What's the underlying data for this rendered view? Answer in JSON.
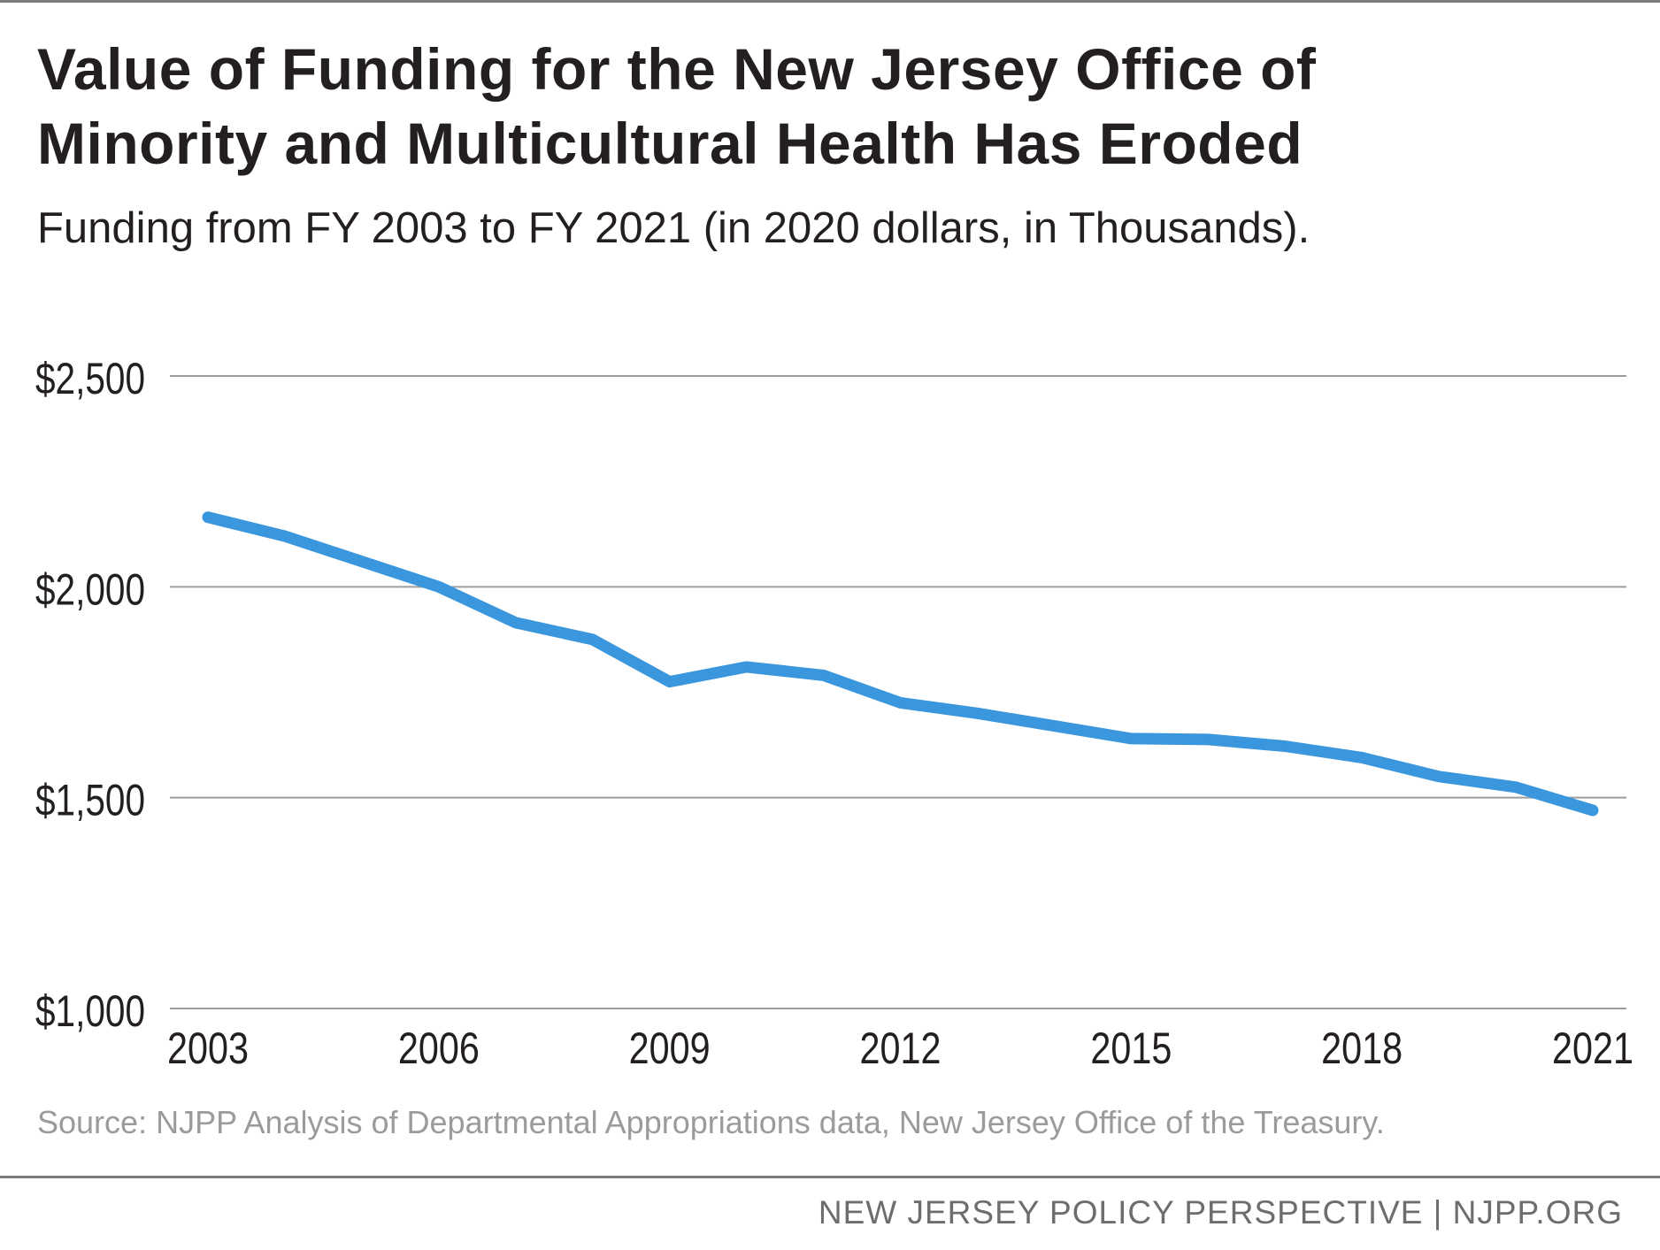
{
  "header": {
    "title_line1": "Value of Funding for the New Jersey Office of",
    "title_line2": "Minority and Multicultural Health Has Eroded",
    "subtitle": "Funding from FY 2003 to FY 2021 (in 2020 dollars, in Thousands)."
  },
  "chart_data": {
    "type": "line",
    "title": "Value of Funding for the New Jersey Office of Minority and Multicultural Health Has Eroded",
    "subtitle": "Funding from FY 2003 to FY 2021 (in 2020 dollars, in Thousands).",
    "xlabel": "",
    "ylabel": "",
    "x": [
      2003,
      2004,
      2005,
      2006,
      2007,
      2008,
      2009,
      2010,
      2011,
      2012,
      2013,
      2014,
      2015,
      2016,
      2017,
      2018,
      2019,
      2020,
      2021
    ],
    "series": [
      {
        "name": "Funding (2020 dollars, thousands)",
        "color": "#3a96dd",
        "values": [
          2165,
          2120,
          2060,
          2000,
          1915,
          1875,
          1775,
          1810,
          1790,
          1725,
          1700,
          1670,
          1640,
          1638,
          1622,
          1595,
          1550,
          1525,
          1470
        ]
      }
    ],
    "ylim": [
      1000,
      2500
    ],
    "yticks": [
      1000,
      1500,
      2000,
      2500
    ],
    "ytick_labels": [
      "$1,000",
      "$1,500",
      "$2,000",
      "$2,500"
    ],
    "xticks": [
      2003,
      2006,
      2009,
      2012,
      2015,
      2018,
      2021
    ],
    "xtick_labels": [
      "2003",
      "2006",
      "2009",
      "2012",
      "2015",
      "2018",
      "2021"
    ],
    "grid": true,
    "gridline_color": "#9e9e9e",
    "text_color": "#231f20"
  },
  "source": "Source: NJPP Analysis of Departmental Appropriations data, New Jersey Office of the Treasury.",
  "footer": "NEW JERSEY POLICY PERSPECTIVE | NJPP.ORG"
}
